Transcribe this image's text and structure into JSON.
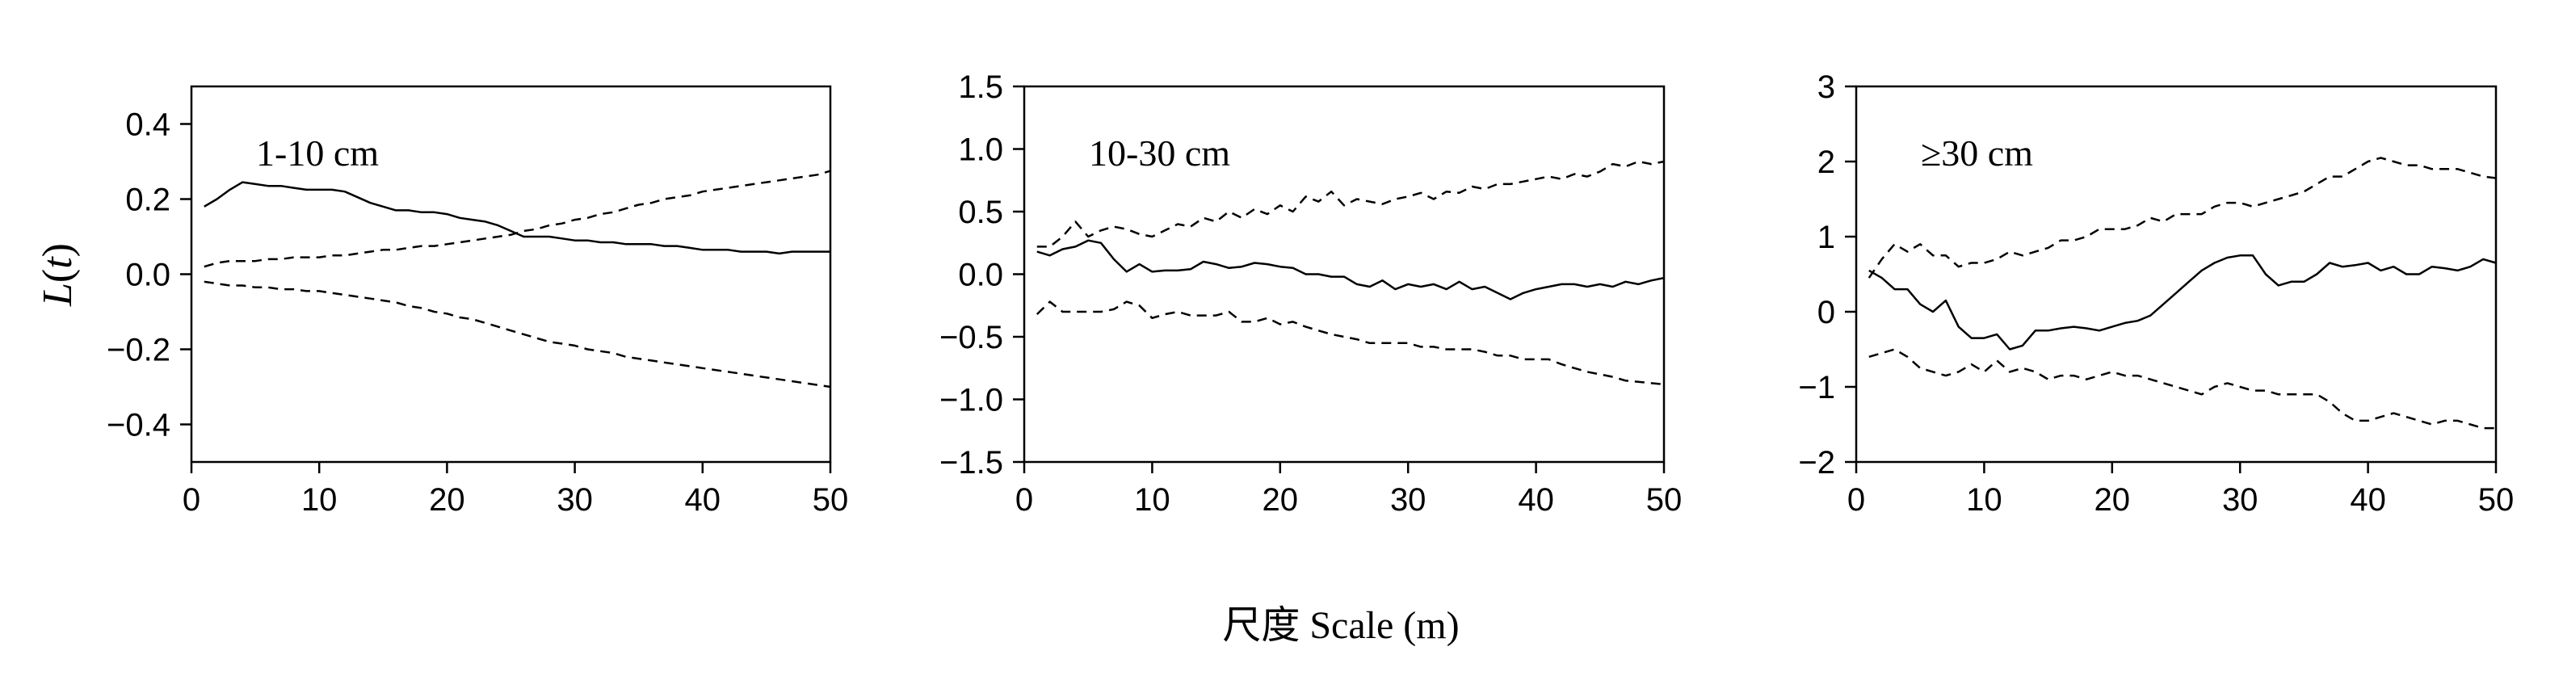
{
  "xlabel": "尺度  Scale (m)",
  "ylabel": "L(t)",
  "chart_data": [
    {
      "type": "line",
      "title": "1-10 cm",
      "xlim": [
        0,
        50
      ],
      "ylim": [
        -0.5,
        0.5
      ],
      "xticks": [
        0,
        10,
        20,
        30,
        40,
        50
      ],
      "yticks": [
        -0.4,
        -0.2,
        0.0,
        0.2,
        0.4
      ],
      "ytick_labels": [
        "−0.4",
        "−0.2",
        "0.0",
        "0.2",
        "0.4"
      ],
      "grid": false,
      "series": [
        {
          "style": "solid",
          "x": [
            1,
            2,
            3,
            4,
            5,
            6,
            7,
            8,
            9,
            10,
            11,
            12,
            13,
            14,
            15,
            16,
            17,
            18,
            19,
            20,
            21,
            22,
            23,
            24,
            25,
            26,
            27,
            28,
            29,
            30,
            31,
            32,
            33,
            34,
            35,
            36,
            37,
            38,
            39,
            40,
            41,
            42,
            43,
            44,
            45,
            46,
            47,
            48,
            49,
            50
          ],
          "y": [
            0.18,
            0.2,
            0.225,
            0.245,
            0.24,
            0.235,
            0.235,
            0.23,
            0.225,
            0.225,
            0.225,
            0.22,
            0.205,
            0.19,
            0.18,
            0.17,
            0.17,
            0.165,
            0.165,
            0.16,
            0.15,
            0.145,
            0.14,
            0.13,
            0.115,
            0.1,
            0.1,
            0.1,
            0.095,
            0.09,
            0.09,
            0.085,
            0.085,
            0.08,
            0.08,
            0.08,
            0.075,
            0.075,
            0.07,
            0.065,
            0.065,
            0.065,
            0.06,
            0.06,
            0.06,
            0.055,
            0.06,
            0.06,
            0.06,
            0.06
          ]
        },
        {
          "style": "dashed",
          "x": [
            1,
            2,
            3,
            4,
            5,
            6,
            7,
            8,
            9,
            10,
            11,
            12,
            13,
            14,
            15,
            16,
            17,
            18,
            19,
            20,
            21,
            22,
            23,
            24,
            25,
            26,
            27,
            28,
            29,
            30,
            31,
            32,
            33,
            34,
            35,
            36,
            37,
            38,
            39,
            40,
            41,
            42,
            43,
            44,
            45,
            46,
            47,
            48,
            49,
            50
          ],
          "y": [
            0.02,
            0.03,
            0.035,
            0.035,
            0.035,
            0.04,
            0.04,
            0.045,
            0.045,
            0.045,
            0.05,
            0.05,
            0.055,
            0.06,
            0.065,
            0.065,
            0.07,
            0.075,
            0.075,
            0.08,
            0.085,
            0.09,
            0.095,
            0.1,
            0.105,
            0.115,
            0.12,
            0.13,
            0.135,
            0.145,
            0.15,
            0.16,
            0.165,
            0.175,
            0.185,
            0.19,
            0.2,
            0.205,
            0.21,
            0.22,
            0.225,
            0.23,
            0.235,
            0.24,
            0.245,
            0.25,
            0.255,
            0.26,
            0.265,
            0.275
          ]
        },
        {
          "style": "dashed",
          "x": [
            1,
            2,
            3,
            4,
            5,
            6,
            7,
            8,
            9,
            10,
            11,
            12,
            13,
            14,
            15,
            16,
            17,
            18,
            19,
            20,
            21,
            22,
            23,
            24,
            25,
            26,
            27,
            28,
            29,
            30,
            31,
            32,
            33,
            34,
            35,
            36,
            37,
            38,
            39,
            40,
            41,
            42,
            43,
            44,
            45,
            46,
            47,
            48,
            49,
            50
          ],
          "y": [
            -0.02,
            -0.025,
            -0.03,
            -0.03,
            -0.035,
            -0.035,
            -0.04,
            -0.04,
            -0.045,
            -0.045,
            -0.05,
            -0.055,
            -0.06,
            -0.065,
            -0.07,
            -0.075,
            -0.085,
            -0.09,
            -0.1,
            -0.105,
            -0.115,
            -0.12,
            -0.13,
            -0.14,
            -0.15,
            -0.16,
            -0.17,
            -0.18,
            -0.185,
            -0.19,
            -0.2,
            -0.205,
            -0.21,
            -0.22,
            -0.225,
            -0.23,
            -0.235,
            -0.24,
            -0.245,
            -0.25,
            -0.255,
            -0.26,
            -0.265,
            -0.27,
            -0.275,
            -0.28,
            -0.285,
            -0.29,
            -0.295,
            -0.3
          ]
        }
      ]
    },
    {
      "type": "line",
      "title": "10-30 cm",
      "xlim": [
        0,
        50
      ],
      "ylim": [
        -1.5,
        1.5
      ],
      "xticks": [
        0,
        10,
        20,
        30,
        40,
        50
      ],
      "yticks": [
        -1.5,
        -1.0,
        -0.5,
        0.0,
        0.5,
        1.0,
        1.5
      ],
      "ytick_labels": [
        "−1.5",
        "−1.0",
        "−0.5",
        "0.0",
        "0.5",
        "1.0",
        "1.5"
      ],
      "grid": false,
      "series": [
        {
          "style": "solid",
          "x": [
            1,
            2,
            3,
            4,
            5,
            6,
            7,
            8,
            9,
            10,
            11,
            12,
            13,
            14,
            15,
            16,
            17,
            18,
            19,
            20,
            21,
            22,
            23,
            24,
            25,
            26,
            27,
            28,
            29,
            30,
            31,
            32,
            33,
            34,
            35,
            36,
            37,
            38,
            39,
            40,
            41,
            42,
            43,
            44,
            45,
            46,
            47,
            48,
            49,
            50
          ],
          "y": [
            0.18,
            0.15,
            0.2,
            0.22,
            0.27,
            0.25,
            0.12,
            0.02,
            0.08,
            0.02,
            0.03,
            0.03,
            0.04,
            0.1,
            0.08,
            0.05,
            0.06,
            0.09,
            0.08,
            0.06,
            0.05,
            0.0,
            0.0,
            -0.02,
            -0.02,
            -0.08,
            -0.1,
            -0.05,
            -0.12,
            -0.08,
            -0.1,
            -0.08,
            -0.12,
            -0.06,
            -0.12,
            -0.1,
            -0.15,
            -0.2,
            -0.15,
            -0.12,
            -0.1,
            -0.08,
            -0.08,
            -0.1,
            -0.08,
            -0.1,
            -0.06,
            -0.08,
            -0.05,
            -0.03
          ]
        },
        {
          "style": "dashed",
          "x": [
            1,
            2,
            3,
            4,
            5,
            6,
            7,
            8,
            9,
            10,
            11,
            12,
            13,
            14,
            15,
            16,
            17,
            18,
            19,
            20,
            21,
            22,
            23,
            24,
            25,
            26,
            27,
            28,
            29,
            30,
            31,
            32,
            33,
            34,
            35,
            36,
            37,
            38,
            39,
            40,
            41,
            42,
            43,
            44,
            45,
            46,
            47,
            48,
            49,
            50
          ],
          "y": [
            0.22,
            0.22,
            0.3,
            0.42,
            0.3,
            0.35,
            0.38,
            0.36,
            0.32,
            0.3,
            0.35,
            0.4,
            0.38,
            0.45,
            0.42,
            0.5,
            0.45,
            0.52,
            0.48,
            0.55,
            0.5,
            0.62,
            0.58,
            0.66,
            0.55,
            0.6,
            0.58,
            0.56,
            0.6,
            0.62,
            0.65,
            0.6,
            0.66,
            0.65,
            0.7,
            0.68,
            0.72,
            0.72,
            0.74,
            0.76,
            0.78,
            0.76,
            0.8,
            0.78,
            0.82,
            0.88,
            0.86,
            0.9,
            0.88,
            0.9
          ]
        },
        {
          "style": "dashed",
          "x": [
            1,
            2,
            3,
            4,
            5,
            6,
            7,
            8,
            9,
            10,
            11,
            12,
            13,
            14,
            15,
            16,
            17,
            18,
            19,
            20,
            21,
            22,
            23,
            24,
            25,
            26,
            27,
            28,
            29,
            30,
            31,
            32,
            33,
            34,
            35,
            36,
            37,
            38,
            39,
            40,
            41,
            42,
            43,
            44,
            45,
            46,
            47,
            48,
            49,
            50
          ],
          "y": [
            -0.32,
            -0.22,
            -0.3,
            -0.3,
            -0.3,
            -0.3,
            -0.28,
            -0.22,
            -0.25,
            -0.35,
            -0.32,
            -0.3,
            -0.33,
            -0.33,
            -0.33,
            -0.3,
            -0.38,
            -0.38,
            -0.35,
            -0.4,
            -0.38,
            -0.42,
            -0.45,
            -0.48,
            -0.5,
            -0.52,
            -0.55,
            -0.55,
            -0.55,
            -0.55,
            -0.58,
            -0.58,
            -0.6,
            -0.6,
            -0.6,
            -0.62,
            -0.65,
            -0.65,
            -0.68,
            -0.68,
            -0.68,
            -0.72,
            -0.75,
            -0.78,
            -0.8,
            -0.82,
            -0.85,
            -0.86,
            -0.87,
            -0.88
          ]
        }
      ]
    },
    {
      "type": "line",
      "title": "≥30 cm",
      "xlim": [
        0,
        50
      ],
      "ylim": [
        -2,
        3
      ],
      "xticks": [
        0,
        10,
        20,
        30,
        40,
        50
      ],
      "yticks": [
        -2,
        -1,
        0,
        1,
        2,
        3
      ],
      "ytick_labels": [
        "−2",
        "−1",
        "0",
        "1",
        "2",
        "3"
      ],
      "grid": false,
      "series": [
        {
          "style": "solid",
          "x": [
            1,
            2,
            3,
            4,
            5,
            6,
            7,
            8,
            9,
            10,
            11,
            12,
            13,
            14,
            15,
            16,
            17,
            18,
            19,
            20,
            21,
            22,
            23,
            24,
            25,
            26,
            27,
            28,
            29,
            30,
            31,
            32,
            33,
            34,
            35,
            36,
            37,
            38,
            39,
            40,
            41,
            42,
            43,
            44,
            45,
            46,
            47,
            48,
            49,
            50
          ],
          "y": [
            0.55,
            0.45,
            0.3,
            0.3,
            0.1,
            0.0,
            0.15,
            -0.2,
            -0.35,
            -0.35,
            -0.3,
            -0.5,
            -0.45,
            -0.25,
            -0.25,
            -0.22,
            -0.2,
            -0.22,
            -0.25,
            -0.2,
            -0.15,
            -0.12,
            -0.05,
            0.1,
            0.25,
            0.4,
            0.55,
            0.65,
            0.72,
            0.75,
            0.75,
            0.5,
            0.35,
            0.4,
            0.4,
            0.5,
            0.65,
            0.6,
            0.62,
            0.65,
            0.55,
            0.6,
            0.5,
            0.5,
            0.6,
            0.58,
            0.55,
            0.6,
            0.7,
            0.65
          ]
        },
        {
          "style": "dashed",
          "x": [
            1,
            2,
            3,
            4,
            5,
            6,
            7,
            8,
            9,
            10,
            11,
            12,
            13,
            14,
            15,
            16,
            17,
            18,
            19,
            20,
            21,
            22,
            23,
            24,
            25,
            26,
            27,
            28,
            29,
            30,
            31,
            32,
            33,
            34,
            35,
            36,
            37,
            38,
            39,
            40,
            41,
            42,
            43,
            44,
            45,
            46,
            47,
            48,
            49,
            50
          ],
          "y": [
            0.45,
            0.7,
            0.9,
            0.8,
            0.9,
            0.75,
            0.75,
            0.6,
            0.65,
            0.65,
            0.7,
            0.8,
            0.75,
            0.8,
            0.85,
            0.95,
            0.95,
            1.0,
            1.1,
            1.1,
            1.1,
            1.15,
            1.25,
            1.2,
            1.3,
            1.3,
            1.3,
            1.4,
            1.45,
            1.45,
            1.4,
            1.45,
            1.5,
            1.55,
            1.6,
            1.7,
            1.8,
            1.8,
            1.9,
            2.0,
            2.05,
            2.0,
            1.95,
            1.95,
            1.9,
            1.9,
            1.9,
            1.85,
            1.8,
            1.78
          ]
        },
        {
          "style": "dashed",
          "x": [
            1,
            2,
            3,
            4,
            5,
            6,
            7,
            8,
            9,
            10,
            11,
            12,
            13,
            14,
            15,
            16,
            17,
            18,
            19,
            20,
            21,
            22,
            23,
            24,
            25,
            26,
            27,
            28,
            29,
            30,
            31,
            32,
            33,
            34,
            35,
            36,
            37,
            38,
            39,
            40,
            41,
            42,
            43,
            44,
            45,
            46,
            47,
            48,
            49,
            50
          ],
          "y": [
            -0.6,
            -0.55,
            -0.5,
            -0.6,
            -0.75,
            -0.8,
            -0.85,
            -0.8,
            -0.7,
            -0.8,
            -0.65,
            -0.8,
            -0.75,
            -0.8,
            -0.9,
            -0.85,
            -0.85,
            -0.9,
            -0.85,
            -0.8,
            -0.85,
            -0.85,
            -0.9,
            -0.95,
            -1.0,
            -1.05,
            -1.1,
            -1.0,
            -0.95,
            -1.0,
            -1.05,
            -1.05,
            -1.1,
            -1.1,
            -1.1,
            -1.1,
            -1.2,
            -1.35,
            -1.45,
            -1.45,
            -1.4,
            -1.35,
            -1.4,
            -1.45,
            -1.5,
            -1.45,
            -1.45,
            -1.5,
            -1.55,
            -1.55
          ]
        }
      ]
    }
  ]
}
